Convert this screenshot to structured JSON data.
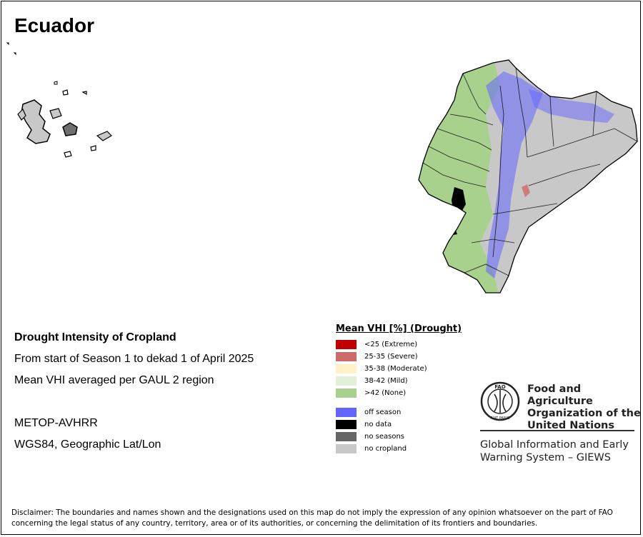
{
  "map": {
    "country": "Ecuador",
    "colors": {
      "extreme": "#c00000",
      "severe": "#cd6b6b",
      "moderate": "#fff2c6",
      "mild": "#e2f0da",
      "none": "#a9d18e",
      "off_season": "#6464ff",
      "no_data": "#000000",
      "no_seasons": "#666666",
      "no_cropland": "#c8c8c8"
    }
  },
  "info": {
    "title": "Drought Intensity of Cropland",
    "period": "From start of Season 1 to dekad 1 of April 2025",
    "method": "Mean VHI averaged per GAUL 2 region",
    "sensor": "METOP-AVHRR",
    "projection": "WGS84, Geographic Lat/Lon"
  },
  "legend": {
    "title": "Mean VHI [%] (Drought)",
    "classes": [
      {
        "label": "<25    (Extreme)",
        "color": "#c00000"
      },
      {
        "label": "25-35 (Severe)",
        "color": "#cd6b6b"
      },
      {
        "label": "35-38 (Moderate)",
        "color": "#fff2c6"
      },
      {
        "label": "38-42 (Mild)",
        "color": "#e2f0da"
      },
      {
        "label": ">42    (None)",
        "color": "#a9d18e"
      }
    ],
    "other": [
      {
        "label": "off season",
        "color": "#6464ff"
      },
      {
        "label": "no data",
        "color": "#000000"
      },
      {
        "label": "no seasons",
        "color": "#666666"
      },
      {
        "label": "no cropland",
        "color": "#c8c8c8"
      }
    ]
  },
  "fao": {
    "logo_text": "FAO",
    "logo_ring_text": "FIAT PANIS",
    "name": "Food and Agriculture Organization of the United Nations",
    "giews": "Global Information and Early Warning System – GIEWS"
  },
  "disclaimer": "Disclaimer: The boundaries and names shown and the designations used on this map do not imply the expression of any opinion whatsoever on the part of FAO concerning the legal status of any country, territory, area or of its authorities, or concerning the delimitation of its frontiers and boundaries."
}
